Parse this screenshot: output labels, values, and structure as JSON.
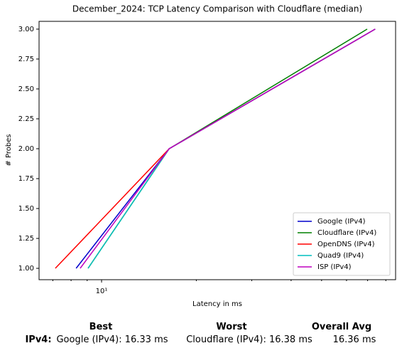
{
  "chart_data": {
    "type": "line",
    "title": "December_2024: TCP Latency Comparison with Cloudflare (median)",
    "x_label": "Latency in ms",
    "y_label": "# Probes",
    "xscale": "log",
    "xlim": [
      6.33,
      85.9
    ],
    "xticks": [
      {
        "value": 10,
        "label": "10¹"
      }
    ],
    "minor_xticks": [
      7,
      8,
      9,
      20,
      30,
      40,
      50,
      60,
      70,
      80
    ],
    "ylim": [
      0.905,
      3.065
    ],
    "yticks": [
      {
        "value": 1,
        "label": "1.00"
      },
      {
        "value": 1.25,
        "label": "1.25"
      },
      {
        "value": 1.5,
        "label": "1.50"
      },
      {
        "value": 1.75,
        "label": "1.75"
      },
      {
        "value": 2,
        "label": "2.00"
      },
      {
        "value": 2.25,
        "label": "2.25"
      },
      {
        "value": 2.5,
        "label": "2.50"
      },
      {
        "value": 2.75,
        "label": "2.75"
      },
      {
        "value": 3,
        "label": "3.00"
      }
    ],
    "legend": "lower right",
    "series": [
      {
        "name": "Google (IPv4)",
        "color": "#0000cc",
        "x": [
          8.3,
          16.4,
          74.0
        ],
        "values": [
          1,
          2,
          3
        ]
      },
      {
        "name": "Cloudflare (IPv4)",
        "color": "#008000",
        "x": [
          9.06,
          16.4,
          69.8
        ],
        "values": [
          1,
          2,
          3
        ]
      },
      {
        "name": "OpenDNS (IPv4)",
        "color": "#ff0000",
        "x": [
          7.13,
          16.4,
          74.0
        ],
        "values": [
          1,
          2,
          3
        ]
      },
      {
        "name": "Quad9 (IPv4)",
        "color": "#00bfbf",
        "x": [
          9.06,
          16.4,
          74.0
        ],
        "values": [
          1,
          2,
          3
        ]
      },
      {
        "name": "ISP (IPv4)",
        "color": "#bf00bf",
        "x": [
          8.55,
          16.4,
          74.0
        ],
        "values": [
          1,
          2,
          3
        ]
      }
    ]
  },
  "summary": {
    "headers": [
      "Best",
      "Worst",
      "Overall Avg"
    ],
    "row_label": "IPv4:",
    "cells": [
      "Google (IPv4): 16.33 ms",
      "Cloudflare (IPv4): 16.38 ms",
      "16.36 ms"
    ]
  }
}
